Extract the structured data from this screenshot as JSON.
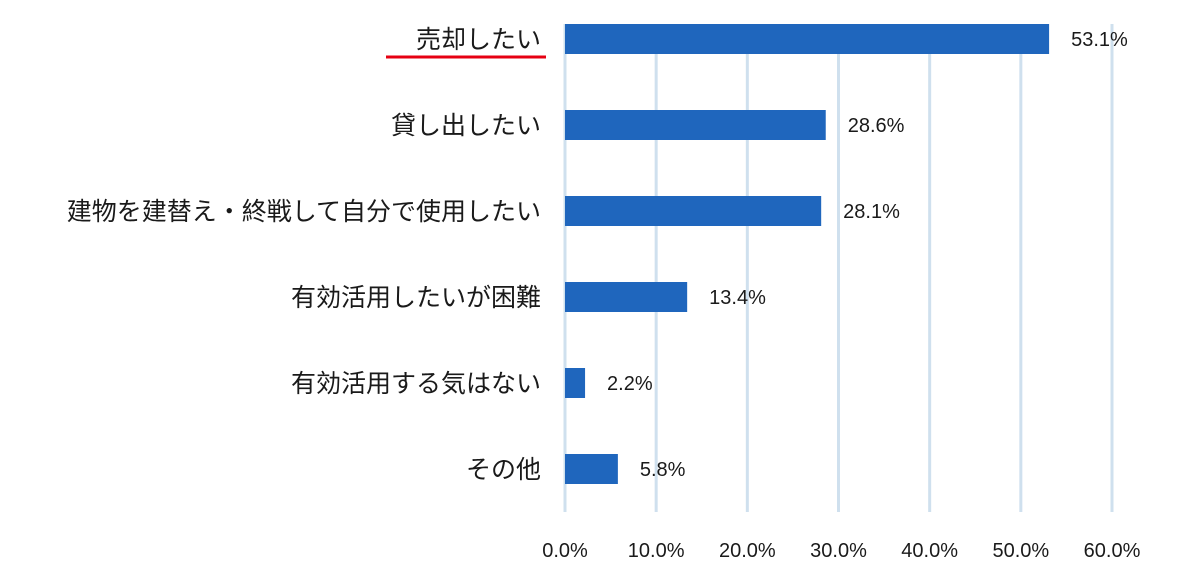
{
  "chart_data": {
    "type": "bar",
    "orientation": "horizontal",
    "categories": [
      "売却したい",
      "貸し出したい",
      "建物を建替え・終戦して自分で使用したい",
      "有効活用したいが困難",
      "有効活用する気はない",
      "その他"
    ],
    "values": [
      53.1,
      28.6,
      28.1,
      13.4,
      2.2,
      5.8
    ],
    "value_labels": [
      "53.1%",
      "28.6%",
      "28.1%",
      "13.4%",
      "2.2%",
      "5.8%"
    ],
    "xticks": [
      "0.0%",
      "10.0%",
      "20.0%",
      "30.0%",
      "40.0%",
      "50.0%",
      "60.0%"
    ],
    "xlim": [
      0,
      60
    ],
    "title": "",
    "xlabel": "",
    "ylabel": "",
    "grid": "vertical",
    "highlighted_category": "売却したい",
    "colors": {
      "bar": "#1f66bd",
      "grid": "#cfe0ee",
      "highlight_underline": "#e60012"
    }
  }
}
